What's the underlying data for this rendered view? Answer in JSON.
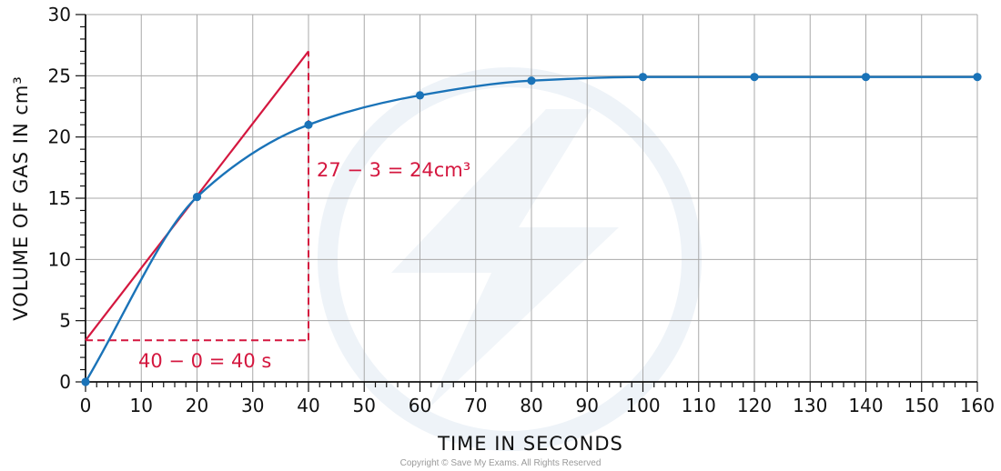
{
  "chart_data": {
    "type": "line",
    "xlabel": "TIME IN SECONDS",
    "ylabel": "VOLUME OF GAS IN cm³",
    "xlim": [
      0,
      160
    ],
    "ylim": [
      0,
      30
    ],
    "x_ticks": [
      0,
      10,
      20,
      30,
      40,
      50,
      60,
      70,
      80,
      90,
      100,
      110,
      120,
      130,
      140,
      150,
      160
    ],
    "y_ticks": [
      0,
      5,
      10,
      15,
      20,
      25,
      30
    ],
    "x_tick_labels": [
      "0",
      "10",
      "20",
      "30",
      "40",
      "50",
      "60",
      "70",
      "80",
      "90",
      "100",
      "110",
      "120",
      "130",
      "140",
      "150",
      "160"
    ],
    "y_tick_labels": [
      "0",
      "5",
      "10",
      "15",
      "20",
      "25",
      "30"
    ],
    "grid": true,
    "series": [
      {
        "color": "#1a73b8",
        "points": [
          {
            "x": 0,
            "y": 0
          },
          {
            "x": 20,
            "y": 15.1
          },
          {
            "x": 40,
            "y": 21.0
          },
          {
            "x": 60,
            "y": 23.4
          },
          {
            "x": 80,
            "y": 24.6
          },
          {
            "x": 100,
            "y": 24.9
          },
          {
            "x": 120,
            "y": 24.9
          },
          {
            "x": 140,
            "y": 24.9
          },
          {
            "x": 160,
            "y": 24.9
          }
        ]
      }
    ],
    "tangent": {
      "color": "#d4173f",
      "x1": 0,
      "y1": 3.4,
      "x2": 40,
      "y2": 27
    },
    "annotations": {
      "rise_label": "27 − 3 = 24cm³",
      "run_label": "40 − 0 = 40 s"
    }
  },
  "footer": {
    "copyright": "Copyright © Save My Exams. All Rights Reserved"
  }
}
